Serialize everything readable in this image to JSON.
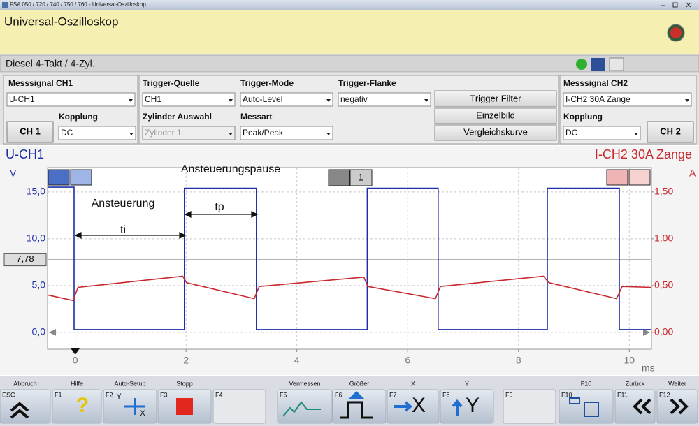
{
  "window": {
    "title": "FSA 050 / 720 / 740 / 750 / 760 - Universal-Oszilloskop"
  },
  "header": {
    "title": "Universal-Oszilloskop",
    "subtitle": "Diesel 4-Takt /  4-Zyl."
  },
  "controls": {
    "ch1": {
      "signal_label": "Messsignal CH1",
      "signal": "U-CH1",
      "coupling_label": "Kopplung",
      "coupling": "DC",
      "button": "CH 1"
    },
    "trigger": {
      "source_label": "Trigger-Quelle",
      "source": "CH1",
      "mode_label": "Trigger-Mode",
      "mode": "Auto-Level",
      "edge_label": "Trigger-Flanke",
      "edge": "negativ",
      "cylinder_label": "Zylinder Auswahl",
      "cylinder": "Zylinder 1",
      "measure_label": "Messart",
      "measure": "Peak/Peak"
    },
    "buttons": [
      "Trigger Filter",
      "Einzelbild",
      "Vergleichskurve"
    ],
    "ch2": {
      "signal_label": "Messsignal CH2",
      "signal": "I-CH2 30A Zange",
      "coupling_label": "Kopplung",
      "coupling": "DC",
      "button": "CH 2"
    }
  },
  "chart_data": {
    "type": "line",
    "x_unit": "ms",
    "y_unit": "V",
    "y2_unit": "A",
    "xlim": [
      -0.5,
      10.4
    ],
    "xticks": [
      0,
      2,
      4,
      6,
      8,
      10
    ],
    "ylim": [
      -1.8,
      17.6
    ],
    "yticks": [
      {
        "value": 0,
        "label": "0,0"
      },
      {
        "value": 5,
        "label": "5,0"
      },
      {
        "value": 10,
        "label": "10,0"
      },
      {
        "value": 15,
        "label": "15,0"
      }
    ],
    "y2lim": [
      -0.18,
      1.76
    ],
    "y2ticks": [
      {
        "value": 0,
        "label": "0,00"
      },
      {
        "value": 0.5,
        "label": "0,50"
      },
      {
        "value": 1,
        "label": "1,00"
      },
      {
        "value": 1.5,
        "label": "1,50"
      }
    ],
    "grid": true,
    "cursor": {
      "value": 7.78,
      "label": "7,78"
    },
    "trigger_cylinder": "1",
    "annotations": [
      "Ansteuerungspause",
      "Ansteuerung",
      "ti",
      "tp"
    ],
    "series": [
      {
        "name": "U-CH1",
        "color": "#1f2fa8",
        "x": [
          -0.5,
          -0.02,
          -0.02,
          1.97,
          1.97,
          3.27,
          3.27,
          5.27,
          5.27,
          6.55,
          6.55,
          8.52,
          8.52,
          9.82,
          9.82,
          10.4
        ],
        "values": [
          15.5,
          15.5,
          0.3,
          0.3,
          15.4,
          15.4,
          0.3,
          0.3,
          15.4,
          15.4,
          0.3,
          0.3,
          15.4,
          15.4,
          0.3,
          0.3
        ]
      },
      {
        "name": "I-CH2 30A Zange",
        "color": "#c8282e",
        "axis": "y2",
        "x": [
          -0.5,
          -0.04,
          0.05,
          1.94,
          2.01,
          3.23,
          3.32,
          5.21,
          5.28,
          6.5,
          6.59,
          8.45,
          8.55,
          9.77,
          9.87,
          10.4
        ],
        "values": [
          0.4,
          0.34,
          0.48,
          0.6,
          0.53,
          0.36,
          0.49,
          0.59,
          0.49,
          0.36,
          0.49,
          0.6,
          0.53,
          0.36,
          0.49,
          0.48
        ]
      }
    ]
  },
  "function_keys": [
    {
      "label": "Abbruch",
      "key": "ESC"
    },
    {
      "label": "Hilfe",
      "key": "F1",
      "icon_text": [
        "?"
      ]
    },
    {
      "label": "Auto-Setup",
      "key": "F2",
      "icon_text": [
        "Y",
        "X"
      ]
    },
    {
      "label": "Stopp",
      "key": "F3"
    },
    {
      "key": "F4"
    },
    {
      "label": "Vermessen",
      "key": "F5"
    },
    {
      "label": "Größer",
      "key": "F6"
    },
    {
      "label": "X",
      "key": "F7",
      "icon_text": [
        "X"
      ]
    },
    {
      "label": "Y",
      "key": "F8",
      "icon_text": [
        "Y"
      ]
    },
    {
      "key": "F9"
    },
    {
      "label": "F10",
      "key": "F10"
    },
    {
      "label": "Zurück",
      "key": "F11"
    },
    {
      "label": "Weiter",
      "key": "F12"
    }
  ]
}
